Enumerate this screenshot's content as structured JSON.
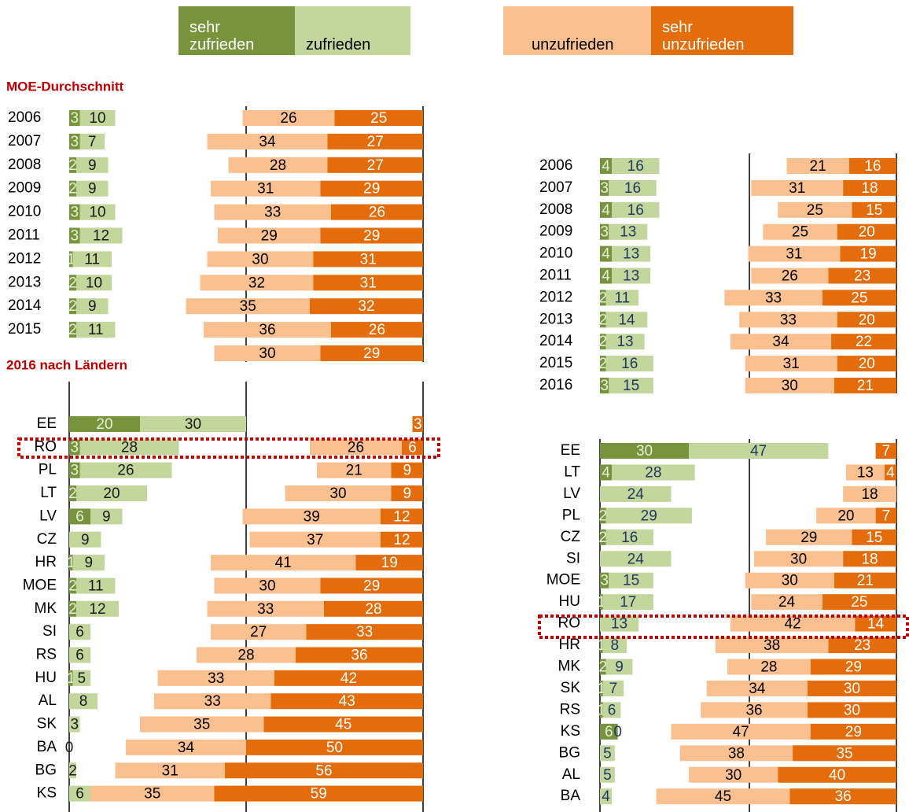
{
  "chart_data": [
    {
      "type": "bar",
      "title": "MOE-Durchschnitt",
      "xlim": [
        0,
        100
      ],
      "categories": [
        "2006",
        "2007",
        "2008",
        "2009",
        "2010",
        "2011",
        "2012",
        "2013",
        "2014",
        "2015",
        null
      ],
      "series": [
        {
          "name": "sehr zufrieden",
          "color": "#77933c",
          "values": [
            3,
            3,
            2,
            2,
            3,
            3,
            1,
            2,
            2,
            2,
            null
          ]
        },
        {
          "name": "zufrieden",
          "color": "#c3d69b",
          "values": [
            10,
            7,
            9,
            9,
            10,
            12,
            11,
            10,
            9,
            11,
            null
          ]
        },
        {
          "name": "unzufrieden",
          "color": "#fac090",
          "values": [
            26,
            34,
            28,
            31,
            33,
            29,
            30,
            32,
            35,
            36,
            30
          ]
        },
        {
          "name": "sehr unzufrieden",
          "color": "#e46c0a",
          "values": [
            25,
            27,
            27,
            29,
            26,
            29,
            31,
            31,
            32,
            26,
            29
          ]
        }
      ]
    },
    {
      "type": "bar",
      "title": "2016 nach Ländern",
      "xlim": [
        0,
        100
      ],
      "categories": [
        "EE",
        "RO",
        "PL",
        "LT",
        "LV",
        "CZ",
        "HR",
        "MOE",
        "MK",
        "SI",
        "RS",
        "HU",
        "AL",
        "SK",
        "BA",
        "BG",
        "KS"
      ],
      "series": [
        {
          "name": "sehr zufrieden",
          "color": "#77933c",
          "values": [
            20,
            3,
            3,
            2,
            6,
            null,
            1,
            2,
            2,
            null,
            null,
            1,
            null,
            null,
            null,
            null,
            null
          ]
        },
        {
          "name": "zufrieden",
          "color": "#c3d69b",
          "values": [
            30,
            28,
            26,
            20,
            9,
            9,
            9,
            11,
            12,
            6,
            6,
            5,
            8,
            3,
            0,
            2,
            6
          ]
        },
        {
          "name": "unzufrieden",
          "color": "#fac090",
          "values": [
            null,
            26,
            21,
            30,
            39,
            37,
            41,
            30,
            33,
            27,
            28,
            33,
            33,
            35,
            34,
            31,
            35
          ]
        },
        {
          "name": "sehr unzufrieden",
          "color": "#e46c0a",
          "values": [
            3,
            6,
            9,
            9,
            12,
            12,
            19,
            29,
            28,
            33,
            36,
            42,
            43,
            45,
            50,
            56,
            59
          ]
        }
      ]
    },
    {
      "type": "bar",
      "xlim": [
        0,
        100
      ],
      "categories": [
        "2006",
        "2007",
        "2008",
        "2009",
        "2010",
        "2011",
        "2012",
        "2013",
        "2014",
        "2015",
        "2016"
      ],
      "series": [
        {
          "name": "sehr zufrieden",
          "color": "#77933c",
          "values": [
            4,
            3,
            4,
            3,
            4,
            4,
            2,
            2,
            2,
            2,
            3
          ]
        },
        {
          "name": "zufrieden",
          "color": "#c3d69b",
          "values": [
            16,
            16,
            16,
            13,
            13,
            13,
            11,
            14,
            13,
            16,
            15
          ]
        },
        {
          "name": "unzufrieden",
          "color": "#fac090",
          "values": [
            21,
            31,
            25,
            25,
            31,
            26,
            33,
            33,
            34,
            31,
            30
          ]
        },
        {
          "name": "sehr unzufrieden",
          "color": "#e46c0a",
          "values": [
            16,
            18,
            15,
            20,
            19,
            23,
            25,
            20,
            22,
            20,
            21
          ]
        }
      ]
    },
    {
      "type": "bar",
      "xlim": [
        0,
        100
      ],
      "categories": [
        "EE",
        "LT",
        "LV",
        "PL",
        "CZ",
        "SI",
        "MOE",
        "HU",
        "RO",
        "HR",
        "MK",
        "SK",
        "RS",
        "KS",
        "BG",
        "AL",
        "BA"
      ],
      "series": [
        {
          "name": "sehr zufrieden",
          "color": "#77933c",
          "values": [
            30,
            4,
            null,
            2,
            2,
            null,
            3,
            1,
            null,
            1,
            2,
            1,
            1,
            6,
            null,
            null,
            null
          ]
        },
        {
          "name": "zufrieden",
          "color": "#c3d69b",
          "values": [
            47,
            28,
            24,
            29,
            16,
            24,
            15,
            17,
            13,
            8,
            9,
            7,
            6,
            0,
            5,
            5,
            4
          ]
        },
        {
          "name": "unzufrieden",
          "color": "#fac090",
          "values": [
            null,
            13,
            18,
            20,
            29,
            30,
            30,
            24,
            42,
            38,
            28,
            34,
            36,
            47,
            38,
            30,
            45
          ]
        },
        {
          "name": "sehr unzufrieden",
          "color": "#e46c0a",
          "values": [
            7,
            4,
            null,
            7,
            15,
            18,
            21,
            25,
            14,
            23,
            29,
            30,
            30,
            29,
            35,
            40,
            36
          ]
        }
      ]
    }
  ]
}
